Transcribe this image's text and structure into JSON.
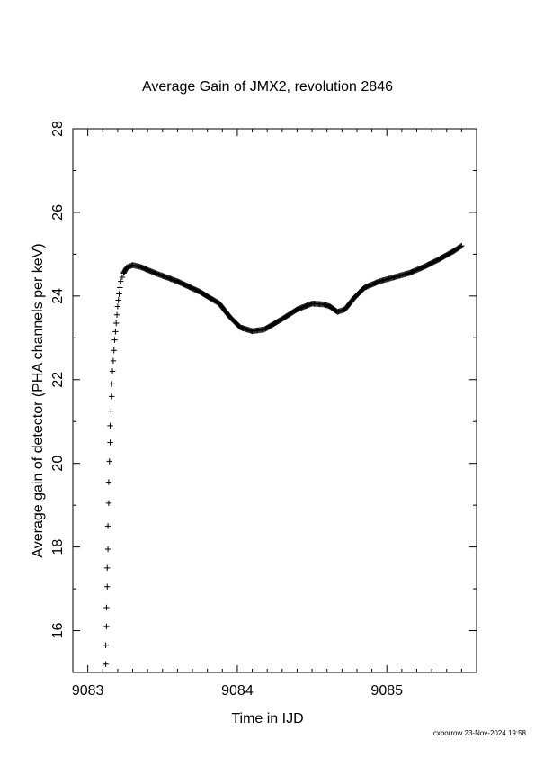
{
  "footer": "cxborrow 23-Nov-2024 19:58",
  "chart_data": {
    "type": "scatter",
    "title": "Average Gain of JMX2, revolution 2846",
    "xlabel": "Time in IJD",
    "ylabel": "Average gain of detector (PHA channels per keV)",
    "xlim": [
      9082.9,
      9085.6
    ],
    "ylim": [
      15,
      28
    ],
    "xticks": [
      9083,
      9084,
      9085
    ],
    "yticks": [
      16,
      18,
      20,
      22,
      24,
      26,
      28
    ],
    "grid": false,
    "marker": "+",
    "points_sparse": [
      [
        9083.12,
        15.2
      ],
      [
        9083.12,
        15.65
      ],
      [
        9083.125,
        16.1
      ],
      [
        9083.125,
        16.55
      ],
      [
        9083.13,
        17.05
      ],
      [
        9083.13,
        17.5
      ],
      [
        9083.135,
        17.95
      ],
      [
        9083.135,
        18.5
      ],
      [
        9083.14,
        19.05
      ],
      [
        9083.14,
        19.55
      ],
      [
        9083.145,
        20.05
      ],
      [
        9083.15,
        20.5
      ],
      [
        9083.15,
        20.9
      ],
      [
        9083.155,
        21.25
      ],
      [
        9083.16,
        21.6
      ],
      [
        9083.16,
        21.9
      ],
      [
        9083.165,
        22.2
      ],
      [
        9083.17,
        22.45
      ],
      [
        9083.175,
        22.7
      ],
      [
        9083.18,
        22.95
      ],
      [
        9083.185,
        23.15
      ],
      [
        9083.19,
        23.35
      ],
      [
        9083.195,
        23.55
      ],
      [
        9083.2,
        23.75
      ],
      [
        9083.205,
        23.9
      ],
      [
        9083.21,
        24.05
      ],
      [
        9083.215,
        24.2
      ],
      [
        9083.22,
        24.35
      ],
      [
        9083.23,
        24.45
      ],
      [
        9083.24,
        24.55
      ]
    ],
    "curve": [
      [
        9083.24,
        24.55
      ],
      [
        9083.26,
        24.68
      ],
      [
        9083.3,
        24.74
      ],
      [
        9083.35,
        24.7
      ],
      [
        9083.45,
        24.55
      ],
      [
        9083.6,
        24.35
      ],
      [
        9083.75,
        24.1
      ],
      [
        9083.88,
        23.82
      ],
      [
        9083.95,
        23.5
      ],
      [
        9084.02,
        23.25
      ],
      [
        9084.1,
        23.16
      ],
      [
        9084.18,
        23.2
      ],
      [
        9084.3,
        23.45
      ],
      [
        9084.4,
        23.68
      ],
      [
        9084.5,
        23.82
      ],
      [
        9084.58,
        23.8
      ],
      [
        9084.62,
        23.75
      ],
      [
        9084.67,
        23.62
      ],
      [
        9084.72,
        23.68
      ],
      [
        9084.78,
        23.95
      ],
      [
        9084.85,
        24.2
      ],
      [
        9084.95,
        24.35
      ],
      [
        9085.05,
        24.45
      ],
      [
        9085.15,
        24.55
      ],
      [
        9085.25,
        24.7
      ],
      [
        9085.35,
        24.88
      ],
      [
        9085.45,
        25.08
      ],
      [
        9085.5,
        25.2
      ]
    ]
  }
}
